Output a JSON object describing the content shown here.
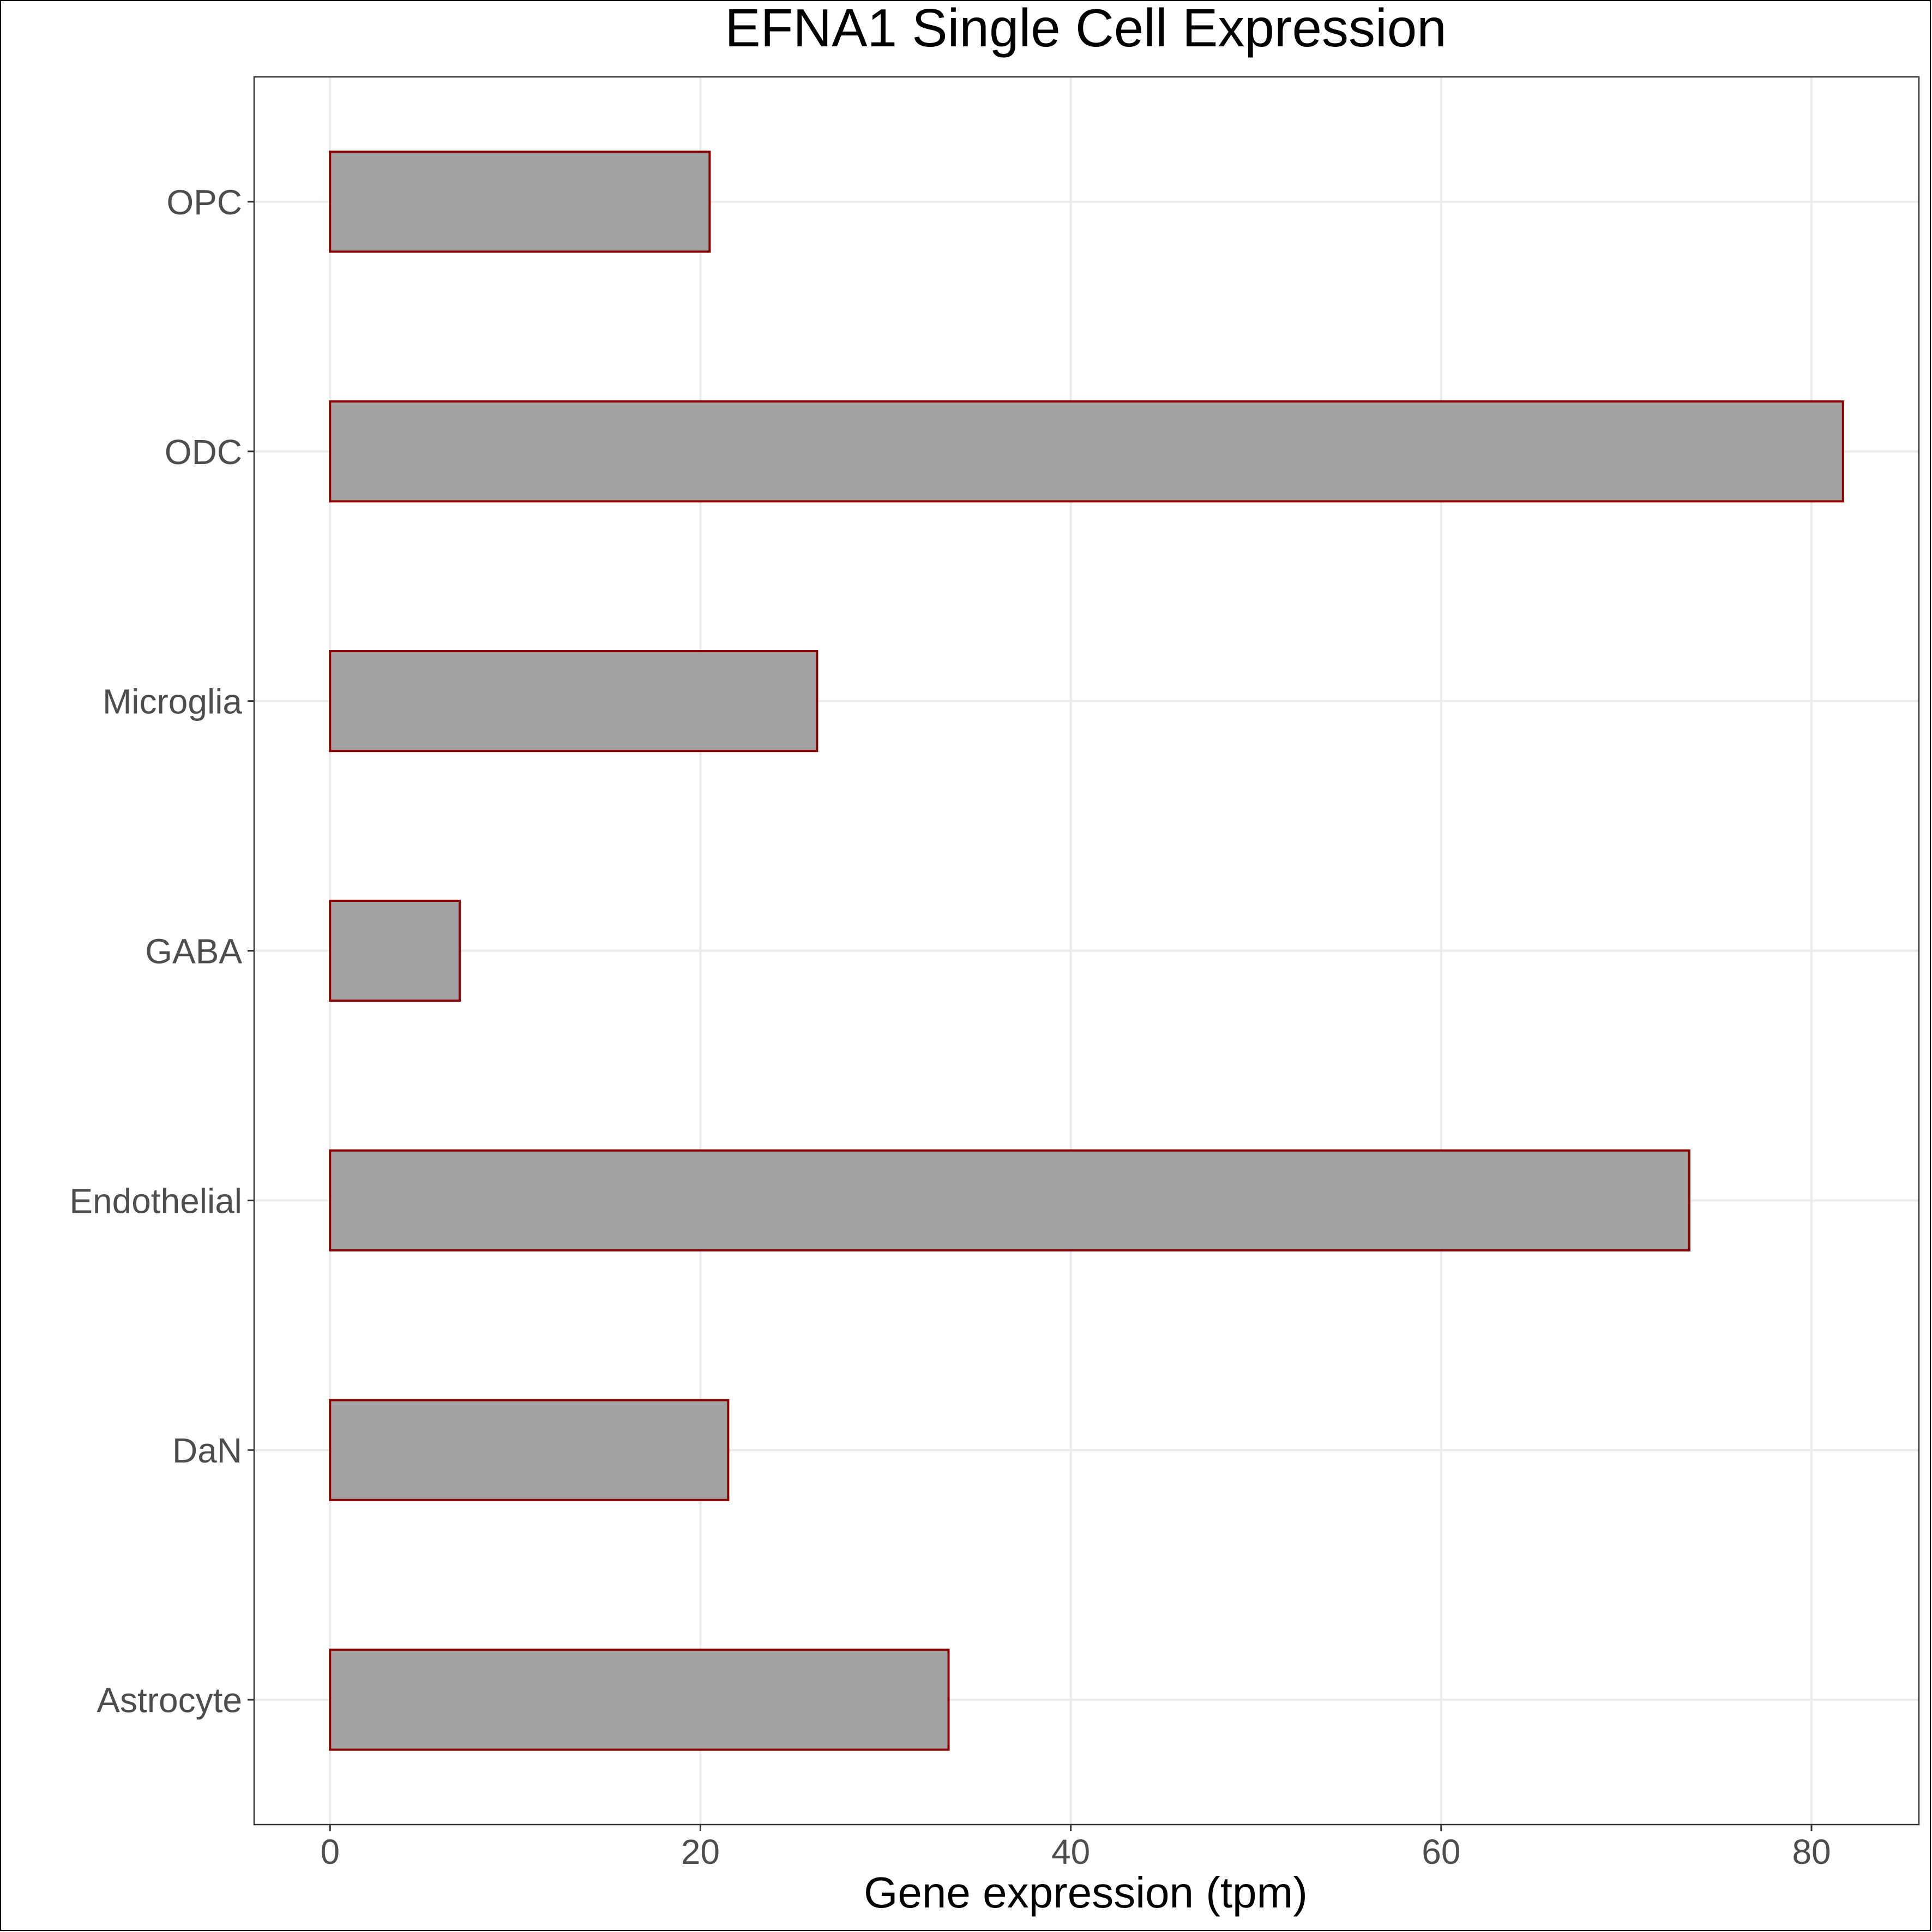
{
  "chart_data": {
    "type": "bar",
    "orientation": "horizontal",
    "title": "EFNA1 Single Cell Expression",
    "xlabel": "Gene expression (tpm)",
    "ylabel": "",
    "categories": [
      "Astrocyte",
      "DaN",
      "Endothelial",
      "GABA",
      "Microglia",
      "ODC",
      "OPC"
    ],
    "values": [
      33.4,
      21.5,
      73.4,
      7.0,
      26.3,
      81.7,
      20.5
    ],
    "xlim": [
      -4.1,
      85.8
    ],
    "xticks": [
      0,
      20,
      40,
      60,
      80
    ],
    "grid": true,
    "legend": "none",
    "colors": {
      "bar_fill": "#a3a3a3",
      "bar_stroke": "#8b0000",
      "grid": "#ebebeb",
      "axis_text": "#4d4d4d",
      "title": "#000000"
    }
  }
}
